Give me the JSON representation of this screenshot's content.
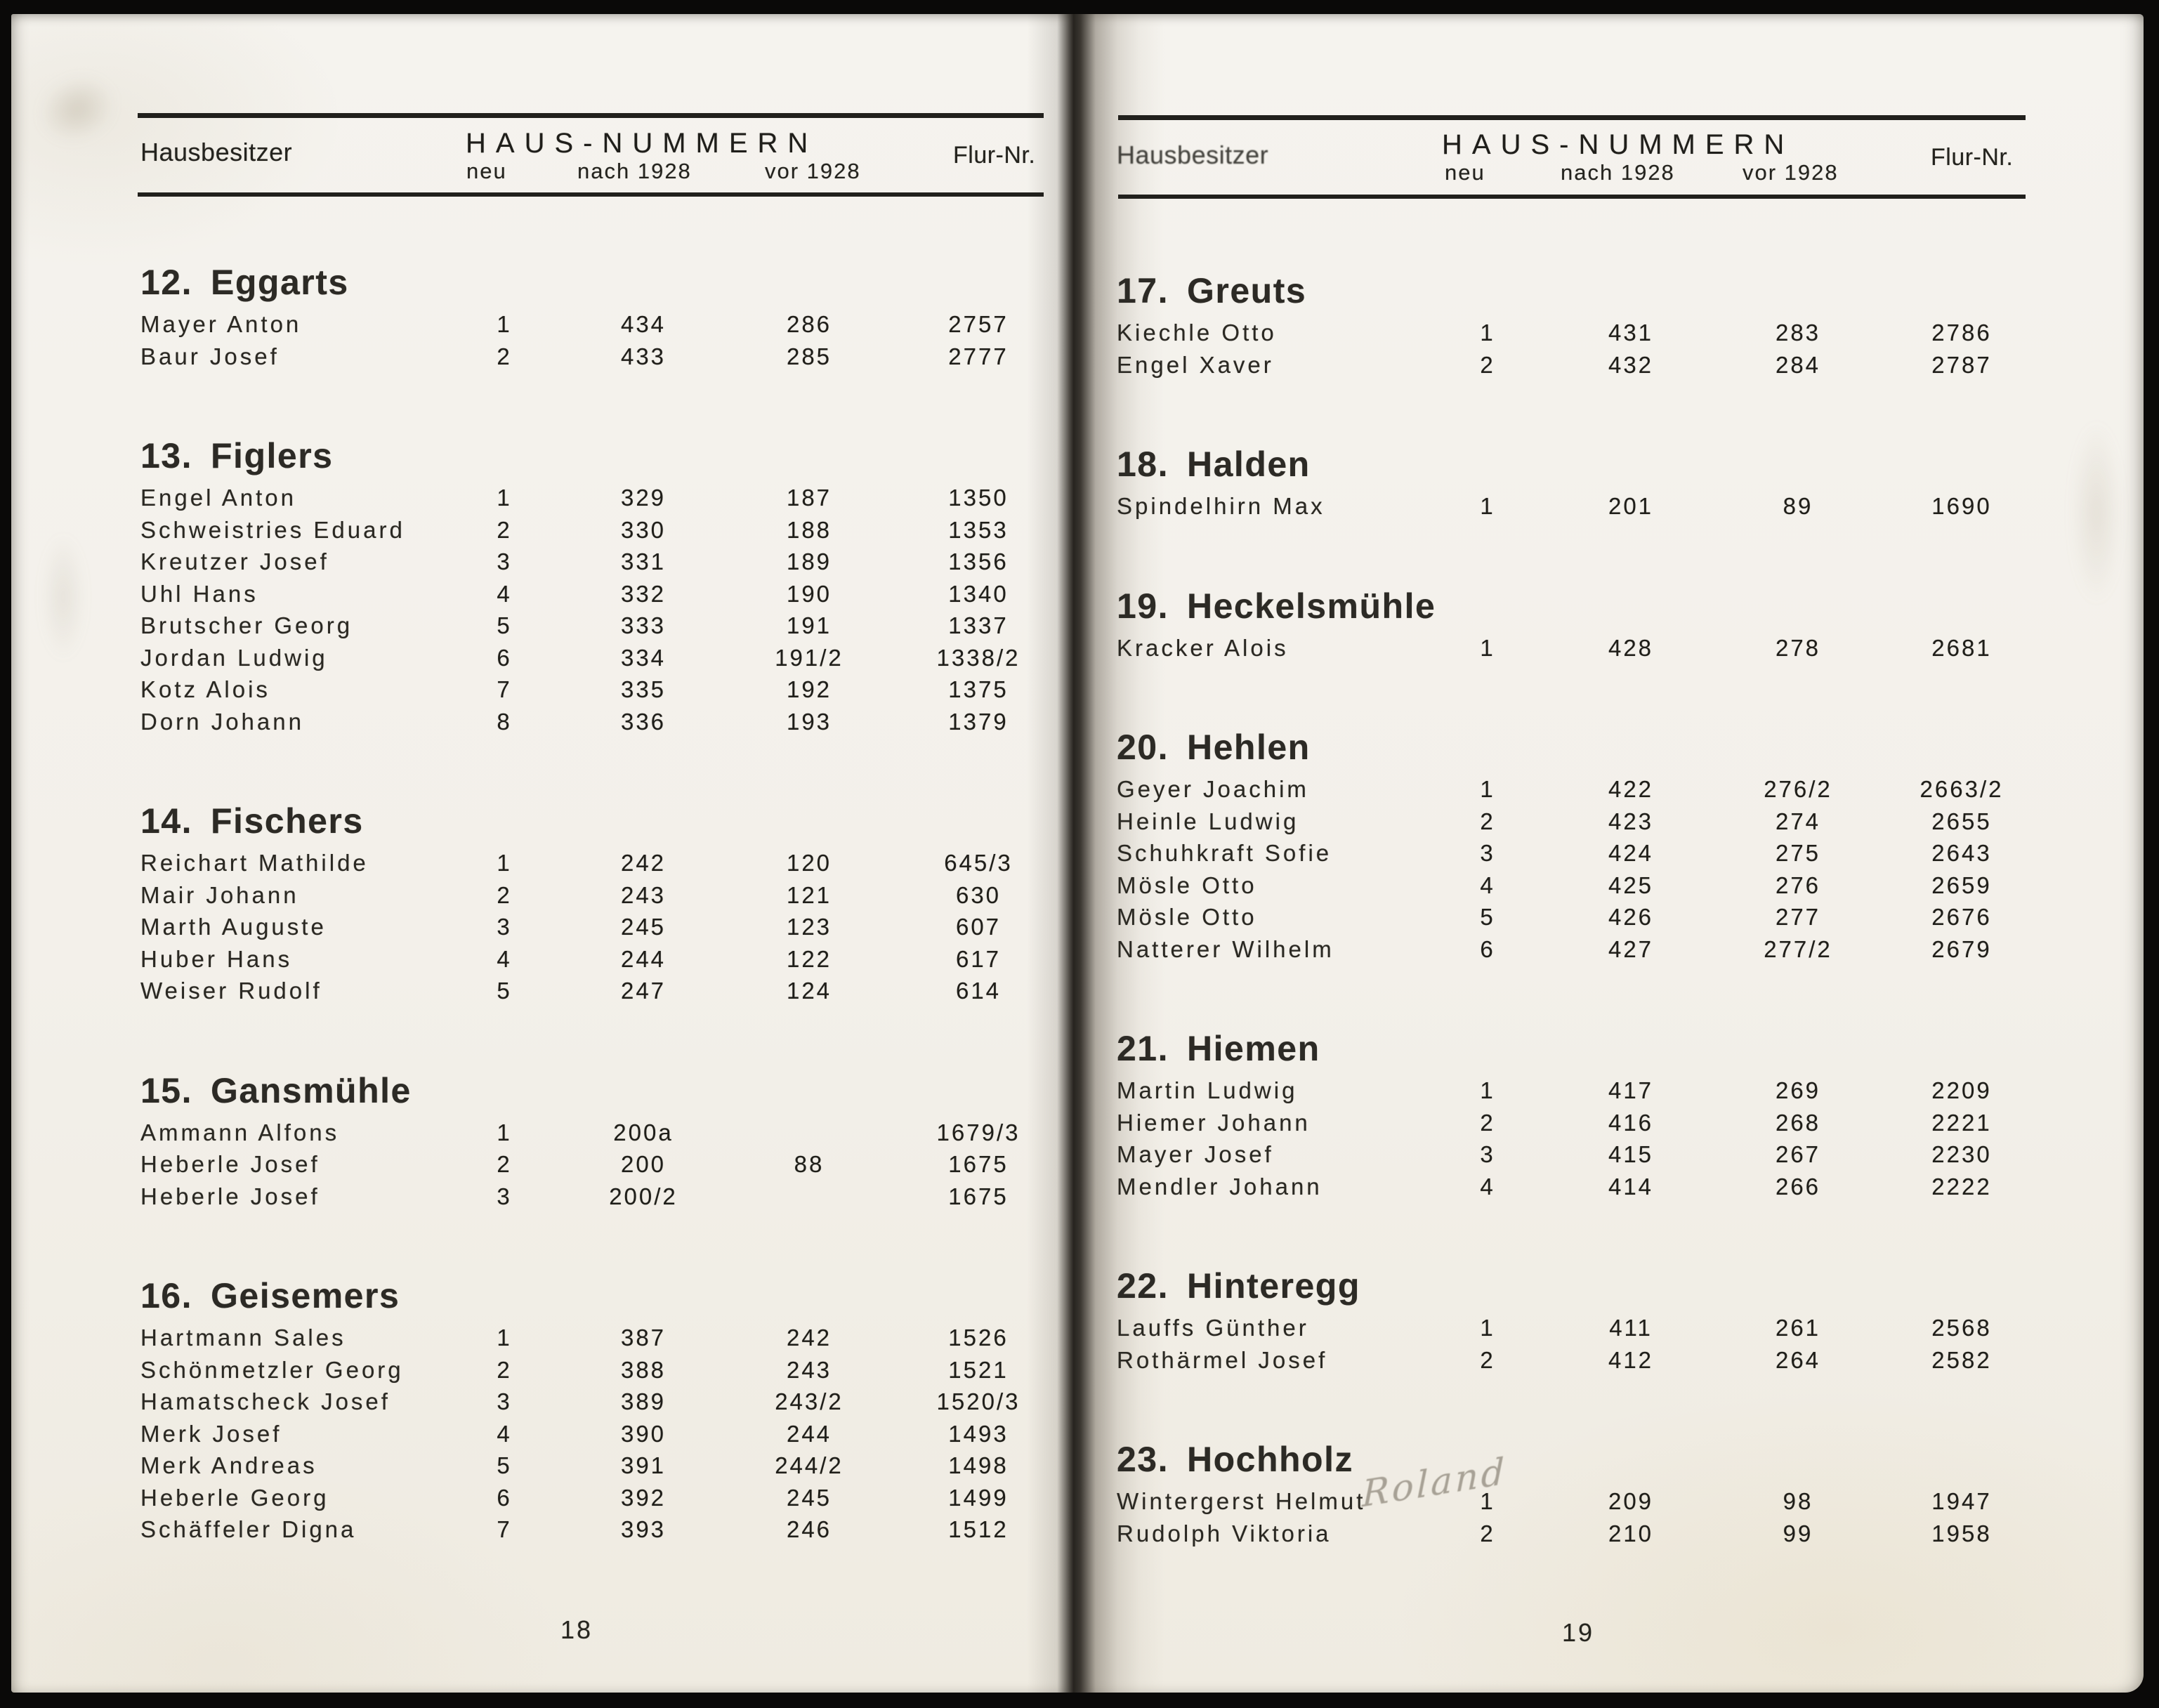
{
  "document": {
    "type": "scanned-book-register",
    "columns": {
      "owner": "Hausbesitzer",
      "group": "HAUS-NUMMERN",
      "neu": "neu",
      "nach": "nach 1928",
      "vor": "vor 1928",
      "flur": "Flur-Nr."
    },
    "colors": {
      "paper": "#f3f0ea",
      "ink": "#24231e",
      "border": "#0a0908",
      "pencil": "#7a7365"
    }
  },
  "pages": {
    "left": {
      "page_number": "18",
      "sections": [
        {
          "num": "12.",
          "name": "Eggarts",
          "rows": [
            [
              "Mayer Anton",
              "1",
              "434",
              "286",
              "2757"
            ],
            [
              "Baur Josef",
              "2",
              "433",
              "285",
              "2777"
            ]
          ]
        },
        {
          "num": "13.",
          "name": "Figlers",
          "rows": [
            [
              "Engel Anton",
              "1",
              "329",
              "187",
              "1350"
            ],
            [
              "Schweistries Eduard",
              "2",
              "330",
              "188",
              "1353"
            ],
            [
              "Kreutzer Josef",
              "3",
              "331",
              "189",
              "1356"
            ],
            [
              "Uhl Hans",
              "4",
              "332",
              "190",
              "1340"
            ],
            [
              "Brutscher Georg",
              "5",
              "333",
              "191",
              "1337"
            ],
            [
              "Jordan Ludwig",
              "6",
              "334",
              "191/2",
              "1338/2"
            ],
            [
              "Kotz Alois",
              "7",
              "335",
              "192",
              "1375"
            ],
            [
              "Dorn Johann",
              "8",
              "336",
              "193",
              "1379"
            ]
          ]
        },
        {
          "num": "14.",
          "name": "Fischers",
          "rows": [
            [
              "Reichart Mathilde",
              "1",
              "242",
              "120",
              "645/3"
            ],
            [
              "Mair Johann",
              "2",
              "243",
              "121",
              "630"
            ],
            [
              "Marth Auguste",
              "3",
              "245",
              "123",
              "607"
            ],
            [
              "Huber Hans",
              "4",
              "244",
              "122",
              "617"
            ],
            [
              "Weiser Rudolf",
              "5",
              "247",
              "124",
              "614"
            ]
          ]
        },
        {
          "num": "15.",
          "name": "Gansmühle",
          "rows": [
            [
              "Ammann Alfons",
              "1",
              "200a",
              "",
              "1679/3"
            ],
            [
              "Heberle Josef",
              "2",
              "200",
              "88",
              "1675"
            ],
            [
              "Heberle Josef",
              "3",
              "200/2",
              "",
              "1675"
            ]
          ]
        },
        {
          "num": "16.",
          "name": "Geisemers",
          "rows": [
            [
              "Hartmann Sales",
              "1",
              "387",
              "242",
              "1526"
            ],
            [
              "Schönmetzler Georg",
              "2",
              "388",
              "243",
              "1521"
            ],
            [
              "Hamatscheck Josef",
              "3",
              "389",
              "243/2",
              "1520/3"
            ],
            [
              "Merk Josef",
              "4",
              "390",
              "244",
              "1493"
            ],
            [
              "Merk Andreas",
              "5",
              "391",
              "244/2",
              "1498"
            ],
            [
              "Heberle Georg",
              "6",
              "392",
              "245",
              "1499"
            ],
            [
              "Schäffeler Digna",
              "7",
              "393",
              "246",
              "1512"
            ]
          ]
        }
      ]
    },
    "right": {
      "page_number": "19",
      "annotation": "Roland",
      "sections": [
        {
          "num": "17.",
          "name": "Greuts",
          "rows": [
            [
              "Kiechle Otto",
              "1",
              "431",
              "283",
              "2786"
            ],
            [
              "Engel Xaver",
              "2",
              "432",
              "284",
              "2787"
            ]
          ]
        },
        {
          "num": "18.",
          "name": "Halden",
          "rows": [
            [
              "Spindelhirn Max",
              "1",
              "201",
              "89",
              "1690"
            ]
          ]
        },
        {
          "num": "19.",
          "name": "Heckelsmühle",
          "rows": [
            [
              "Kracker Alois",
              "1",
              "428",
              "278",
              "2681"
            ]
          ]
        },
        {
          "num": "20.",
          "name": "Hehlen",
          "rows": [
            [
              "Geyer Joachim",
              "1",
              "422",
              "276/2",
              "2663/2"
            ],
            [
              "Heinle Ludwig",
              "2",
              "423",
              "274",
              "2655"
            ],
            [
              "Schuhkraft Sofie",
              "3",
              "424",
              "275",
              "2643"
            ],
            [
              "Mösle Otto",
              "4",
              "425",
              "276",
              "2659"
            ],
            [
              "Mösle Otto",
              "5",
              "426",
              "277",
              "2676"
            ],
            [
              "Natterer Wilhelm",
              "6",
              "427",
              "277/2",
              "2679"
            ]
          ]
        },
        {
          "num": "21.",
          "name": "Hiemen",
          "rows": [
            [
              "Martin Ludwig",
              "1",
              "417",
              "269",
              "2209"
            ],
            [
              "Hiemer Johann",
              "2",
              "416",
              "268",
              "2221"
            ],
            [
              "Mayer Josef",
              "3",
              "415",
              "267",
              "2230"
            ],
            [
              "Mendler Johann",
              "4",
              "414",
              "266",
              "2222"
            ]
          ]
        },
        {
          "num": "22.",
          "name": "Hinteregg",
          "rows": [
            [
              "Lauffs Günther",
              "1",
              "411",
              "261",
              "2568"
            ],
            [
              "Rothärmel Josef",
              "2",
              "412",
              "264",
              "2582"
            ]
          ]
        },
        {
          "num": "23.",
          "name": "Hochholz",
          "rows": [
            [
              "Wintergerst Helmut",
              "1",
              "209",
              "98",
              "1947"
            ],
            [
              "Rudolph Viktoria",
              "2",
              "210",
              "99",
              "1958"
            ]
          ]
        }
      ]
    }
  }
}
